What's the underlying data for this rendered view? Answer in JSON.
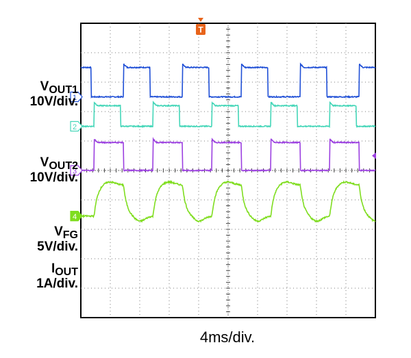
{
  "chart_data": {
    "type": "line",
    "title": "",
    "xlabel": "4ms/div.",
    "x_divisions": 10,
    "time_per_division_ms": 4,
    "trigger_marker": "T",
    "series": [
      {
        "channel": "1",
        "symbol": "V",
        "subscript": "OUT1",
        "scale": "10V/div.",
        "color": "#1f4fd6",
        "waveform": "square",
        "period_div": 2.0,
        "rising_edges_div": [
          1.45,
          3.45,
          5.45,
          7.45,
          9.45
        ],
        "falling_edges_div": [
          0.35,
          2.35,
          4.35,
          6.35,
          8.35
        ],
        "high_div": 3.5,
        "low_div": 2.5
      },
      {
        "channel": "2",
        "symbol": "V",
        "subscript": "OUT2",
        "scale": "10V/div.",
        "color": "#44d6b8",
        "waveform": "pulse",
        "period_div": 2.0,
        "rising_edges_div": [
          0.45,
          2.45,
          4.45,
          6.45,
          8.45
        ],
        "falling_edges_div": [
          1.35,
          3.35,
          5.35,
          7.35,
          9.35
        ],
        "high_div": 2.2,
        "low_div": 1.5
      },
      {
        "channel": "3",
        "symbol": "V",
        "subscript": "FG",
        "scale": "5V/div.",
        "color": "#9b3fe0",
        "waveform": "square",
        "period_div": 2.0,
        "rising_edges_div": [
          0.45,
          2.45,
          4.45,
          6.45,
          8.45
        ],
        "falling_edges_div": [
          1.45,
          3.45,
          5.45,
          7.45,
          9.45
        ],
        "high_div": 0.95,
        "low_div": 0.0
      },
      {
        "channel": "4",
        "symbol": "I",
        "subscript": "OUT",
        "scale": "1A/div.",
        "color": "#7fdd1f",
        "waveform": "trapezoid",
        "period_div": 2.0,
        "rising_edges_div": [
          0.45,
          2.45,
          4.45,
          6.45,
          8.45
        ],
        "falling_edges_div": [
          1.45,
          3.45,
          5.45,
          7.45,
          9.45
        ],
        "high_div": -0.5,
        "low_div": -1.55
      }
    ]
  }
}
